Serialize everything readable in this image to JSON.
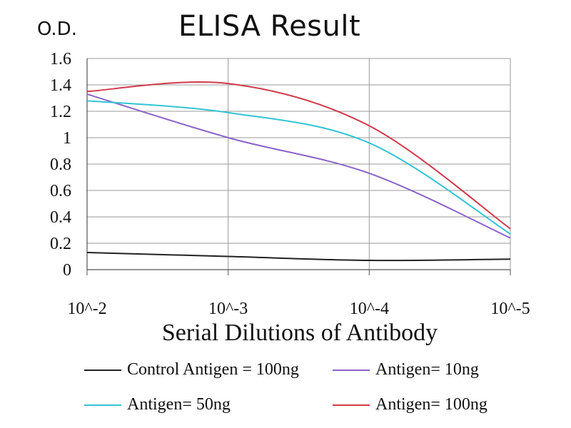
{
  "chart_data": {
    "type": "line",
    "title": "ELISA Result",
    "ylabel": "O.D.",
    "xlabel": "Serial Dilutions of Antibody",
    "categories": [
      "10^-2",
      "10^-3",
      "10^-4",
      "10^-5"
    ],
    "ylim": [
      0,
      1.6
    ],
    "yticks": [
      "0",
      "0.2",
      "0.4",
      "0.6",
      "0.8",
      "1",
      "1.2",
      "1.4",
      "1.6"
    ],
    "grid": true,
    "legend_position": "bottom",
    "series": [
      {
        "name": "Control Antigen = 100ng",
        "color": "#222222",
        "values": [
          0.13,
          0.1,
          0.07,
          0.08
        ]
      },
      {
        "name": "Antigen= 10ng",
        "color": "#8a63c8",
        "values": [
          1.33,
          1.0,
          0.73,
          0.24
        ]
      },
      {
        "name": "Antigen= 50ng",
        "color": "#33c3d6",
        "values": [
          1.28,
          1.19,
          0.96,
          0.27
        ]
      },
      {
        "name": "Antigen= 100ng",
        "color": "#d13a4a",
        "values": [
          1.35,
          1.41,
          1.09,
          0.31
        ]
      }
    ]
  }
}
